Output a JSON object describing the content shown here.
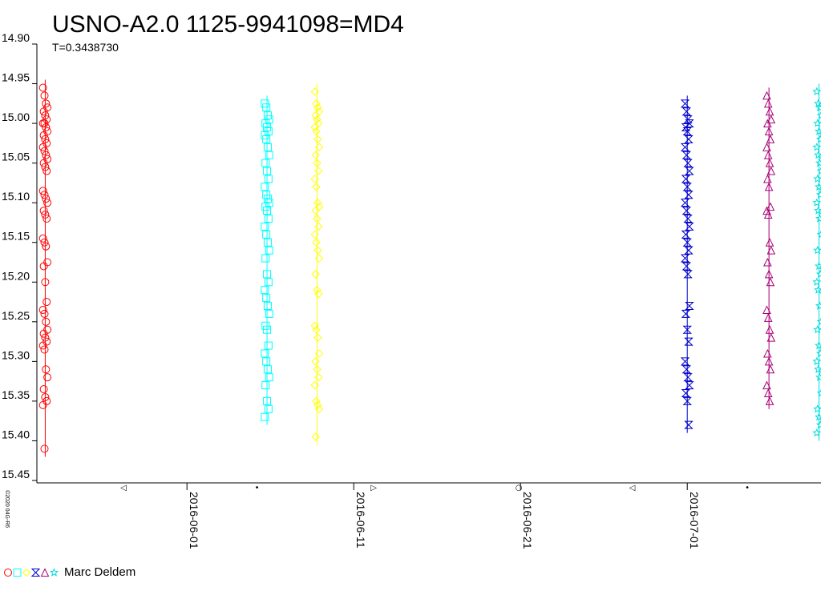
{
  "chart_data": {
    "type": "scatter",
    "title": "USNO-A2.0 1125-9941098=MD4",
    "subtitle": "T=0.3438730",
    "y_axis": {
      "inverted": true,
      "range": [
        14.9,
        15.45
      ],
      "ticks": [
        "14.90",
        "14.95",
        "15.00",
        "15.05",
        "15.10",
        "15.15",
        "15.20",
        "15.25",
        "15.30",
        "15.35",
        "15.40",
        "15.45"
      ]
    },
    "x_axis": {
      "type": "date",
      "range": [
        "2016-05-23",
        "2016-07-09"
      ],
      "ticks": [
        "2016-06-01",
        "2016-06-11",
        "2016-06-21",
        "2016-07-01"
      ]
    },
    "series": [
      {
        "date": "2016-05-23.5",
        "color": "#ff0000",
        "marker": "circle",
        "values": [
          14.955,
          14.965,
          14.975,
          14.98,
          14.985,
          14.99,
          14.995,
          15.0,
          15.0,
          15.005,
          15.01,
          15.015,
          15.02,
          15.025,
          15.03,
          15.035,
          15.04,
          15.045,
          15.05,
          15.055,
          15.06,
          15.085,
          15.09,
          15.095,
          15.1,
          15.11,
          15.115,
          15.12,
          15.145,
          15.15,
          15.155,
          15.175,
          15.18,
          15.2,
          15.225,
          15.235,
          15.24,
          15.25,
          15.26,
          15.265,
          15.27,
          15.275,
          15.28,
          15.285,
          15.31,
          15.32,
          15.335,
          15.345,
          15.35,
          15.355,
          15.41
        ]
      },
      {
        "date": "2016-06-05.8",
        "color": "#00ffff",
        "marker": "square",
        "values": [
          14.975,
          14.98,
          14.99,
          14.995,
          15.0,
          15.005,
          15.01,
          15.015,
          15.02,
          15.03,
          15.04,
          15.05,
          15.06,
          15.07,
          15.08,
          15.09,
          15.095,
          15.1,
          15.105,
          15.11,
          15.12,
          15.13,
          15.14,
          15.15,
          15.16,
          15.17,
          15.19,
          15.2,
          15.21,
          15.22,
          15.23,
          15.24,
          15.255,
          15.26,
          15.28,
          15.29,
          15.3,
          15.31,
          15.32,
          15.33,
          15.35,
          15.36,
          15.37
        ]
      },
      {
        "date": "2016-06-08.8",
        "color": "#ffff00",
        "marker": "diamond",
        "values": [
          14.96,
          14.975,
          14.98,
          14.985,
          14.99,
          14.995,
          15.0,
          15.005,
          15.01,
          15.02,
          15.03,
          15.04,
          15.05,
          15.06,
          15.07,
          15.08,
          15.1,
          15.105,
          15.11,
          15.12,
          15.13,
          15.14,
          15.15,
          15.16,
          15.17,
          15.19,
          15.21,
          15.215,
          15.255,
          15.26,
          15.27,
          15.29,
          15.3,
          15.31,
          15.32,
          15.33,
          15.35,
          15.355,
          15.36,
          15.395
        ]
      },
      {
        "date": "2016-07-01.0",
        "color": "#0000cc",
        "marker": "bowtie",
        "values": [
          14.975,
          14.985,
          14.995,
          15.0,
          15.005,
          15.01,
          15.02,
          15.03,
          15.04,
          15.05,
          15.06,
          15.07,
          15.08,
          15.09,
          15.1,
          15.11,
          15.12,
          15.13,
          15.14,
          15.15,
          15.16,
          15.17,
          15.18,
          15.19,
          15.23,
          15.24,
          15.26,
          15.275,
          15.3,
          15.31,
          15.32,
          15.33,
          15.34,
          15.35,
          15.38
        ]
      },
      {
        "date": "2016-07-05.9",
        "color": "#aa0077",
        "marker": "triangle",
        "values": [
          14.965,
          14.975,
          14.985,
          14.995,
          15.0,
          15.01,
          15.02,
          15.03,
          15.04,
          15.05,
          15.06,
          15.07,
          15.08,
          15.105,
          15.11,
          15.115,
          15.15,
          15.16,
          15.175,
          15.19,
          15.2,
          15.235,
          15.245,
          15.26,
          15.27,
          15.29,
          15.3,
          15.31,
          15.33,
          15.34,
          15.35
        ]
      },
      {
        "date": "2016-07-08.9",
        "color": "#00dddd",
        "marker": "star",
        "values": [
          14.96,
          14.975,
          14.98,
          14.99,
          15.0,
          15.01,
          15.02,
          15.03,
          15.04,
          15.05,
          15.06,
          15.07,
          15.08,
          15.09,
          15.1,
          15.11,
          15.12,
          15.14,
          15.16,
          15.18,
          15.19,
          15.2,
          15.21,
          15.23,
          15.25,
          15.26,
          15.28,
          15.29,
          15.3,
          15.31,
          15.32,
          15.34,
          15.36,
          15.37,
          15.38,
          15.39
        ]
      }
    ],
    "moon_phases": [
      {
        "date": "2016-05-28.2",
        "glyph": "◁"
      },
      {
        "date": "2016-06-05.2",
        "glyph": "•"
      },
      {
        "date": "2016-06-12.2",
        "glyph": "▷"
      },
      {
        "date": "2016-06-20.9",
        "glyph": "○"
      },
      {
        "date": "2016-06-27.7",
        "glyph": "◁"
      },
      {
        "date": "2016-07-04.6",
        "glyph": "•"
      }
    ],
    "legend": {
      "observer": "Marc Deldem",
      "position": "bottom-left"
    },
    "copyright": "©2020 04G-R6"
  }
}
